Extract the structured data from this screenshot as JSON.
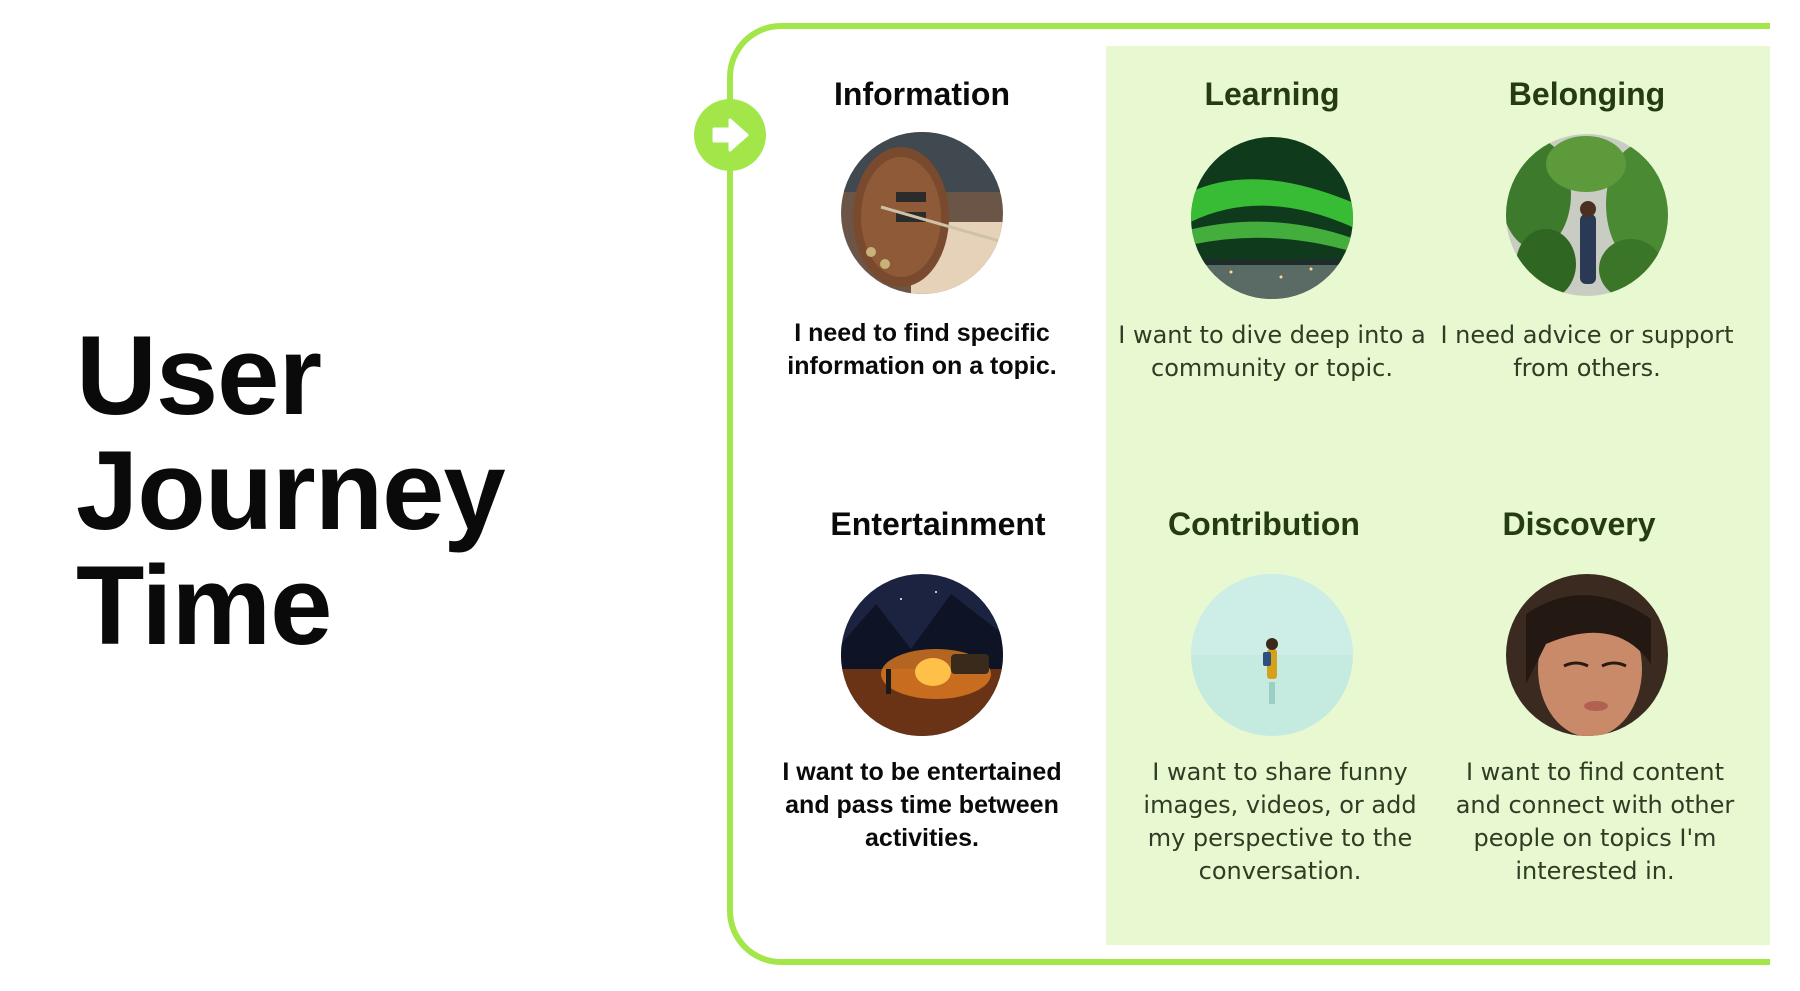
{
  "title": {
    "line1": "User",
    "line2": "Journey",
    "line3": "Time"
  },
  "colors": {
    "accent": "#a3e64a",
    "panel": "#e8f8d0",
    "heading_dark_green": "#243b13",
    "text_dark": "#0a0a0a"
  },
  "arrow_badge": {
    "icon": "arrow-right-icon"
  },
  "cards": [
    {
      "heading": "Information",
      "image": "guitar-photo",
      "description": "I need to find specific information on a topic."
    },
    {
      "heading": "Learning",
      "image": "aurora-photo",
      "description": "I want to dive deep into a community or topic."
    },
    {
      "heading": "Belonging",
      "image": "plants-person-photo",
      "description": "I need advice or support from others."
    },
    {
      "heading": "Entertainment",
      "image": "campfire-photo",
      "description": "I want to be entertained and pass time between activities."
    },
    {
      "heading": "Contribution",
      "image": "traveler-photo",
      "description": "I want to share funny images, videos, or add my perspective to the conversation."
    },
    {
      "heading": "Discovery",
      "image": "portrait-photo",
      "description": "I want to find content and connect with other people on topics I'm interested in."
    }
  ]
}
